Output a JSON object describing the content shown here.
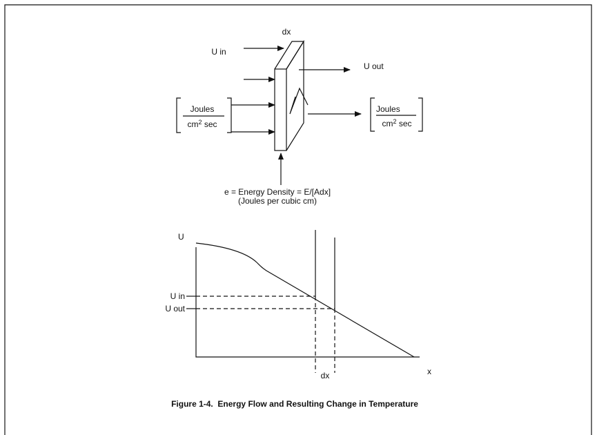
{
  "diagram": {
    "slab": {
      "label": "dx",
      "input_label": "U in",
      "output_label": "U out"
    },
    "left_units": {
      "numerator": "Joules",
      "denominator_base": "cm",
      "denominator_exp": "2",
      "denominator_rest": "sec"
    },
    "right_units": {
      "numerator": "Joules",
      "denominator_base": "cm",
      "denominator_exp": "2",
      "denominator_rest": "sec"
    },
    "energy_density": {
      "line1": "e = Energy Density = E/[Adx]",
      "line2": "(Joules per cubic cm)"
    },
    "graph": {
      "y_axis_label": "U",
      "x_axis_label": "x",
      "u_in_label": "U in",
      "u_out_label": "U out",
      "dx_label": "dx"
    },
    "caption": "Figure 1-4.  Energy Flow and Resulting Change in Temperature"
  }
}
